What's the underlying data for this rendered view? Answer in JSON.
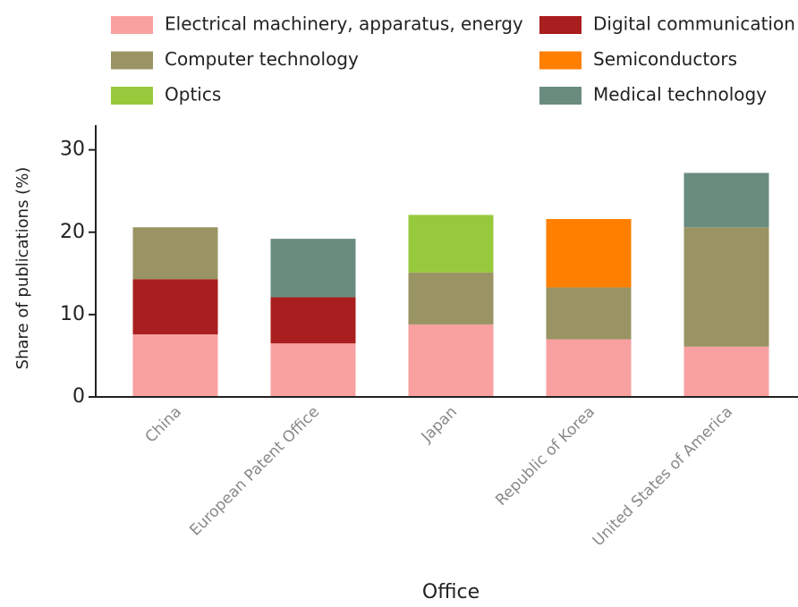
{
  "chart_data": {
    "type": "stacked-bar",
    "x_label": "Office",
    "y_label": "Share of publications (%)",
    "categories": [
      "China",
      "European Patent Office",
      "Japan",
      "Republic of Korea",
      "United States of America"
    ],
    "series": [
      {
        "name": "Electrical machinery, apparatus, energy",
        "color": "#f9a0a0",
        "values": [
          7.6,
          6.5,
          8.8,
          7.0,
          6.1
        ]
      },
      {
        "name": "Digital communication",
        "color": "#a91e1e",
        "values": [
          6.7,
          5.6,
          null,
          null,
          null
        ]
      },
      {
        "name": "Computer technology",
        "color": "#9a9464",
        "values": [
          6.3,
          null,
          6.3,
          6.3,
          14.5
        ]
      },
      {
        "name": "Semiconductors",
        "color": "#ff7f00",
        "values": [
          null,
          null,
          null,
          8.3,
          null
        ]
      },
      {
        "name": "Optics",
        "color": "#97c93d",
        "values": [
          null,
          null,
          7.0,
          null,
          null
        ]
      },
      {
        "name": "Medical technology",
        "color": "#6a8c7e",
        "values": [
          null,
          7.1,
          null,
          null,
          6.6
        ]
      }
    ],
    "ylim": [
      0,
      33
    ],
    "yticks": [
      0,
      10,
      20,
      30
    ]
  }
}
